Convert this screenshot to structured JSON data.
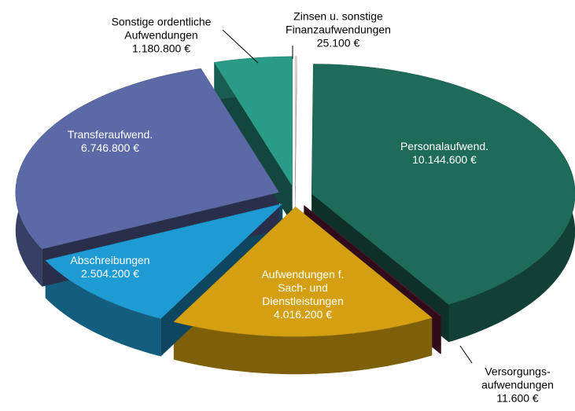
{
  "chart_data": {
    "type": "pie",
    "categories": [
      "Zinsen u. sonstige\nFinanzaufwendungen",
      "Personalaufwend.",
      "Versorgungs-\naufwendungen",
      "Aufwendungen f.\nSach- und\nDienstleistungen",
      "Abschreibungen",
      "Transferaufwend.",
      "Sonstige ordentliche\nAufwendungen"
    ],
    "values": [
      25100,
      10144600,
      11600,
      4016200,
      2504200,
      6746800,
      1180800
    ],
    "value_labels": [
      "25.100 €",
      "10.144.600 €",
      "11.600 €",
      "4.016.200 €",
      "2.504.200 €",
      "6.746.800 €",
      "1.180.800 €"
    ],
    "colors": [
      "#d9d9d9",
      "#1e6b5a",
      "#6a1a3a",
      "#d4a011",
      "#1f9bd4",
      "#5b69a6",
      "#2a9b86"
    ]
  }
}
